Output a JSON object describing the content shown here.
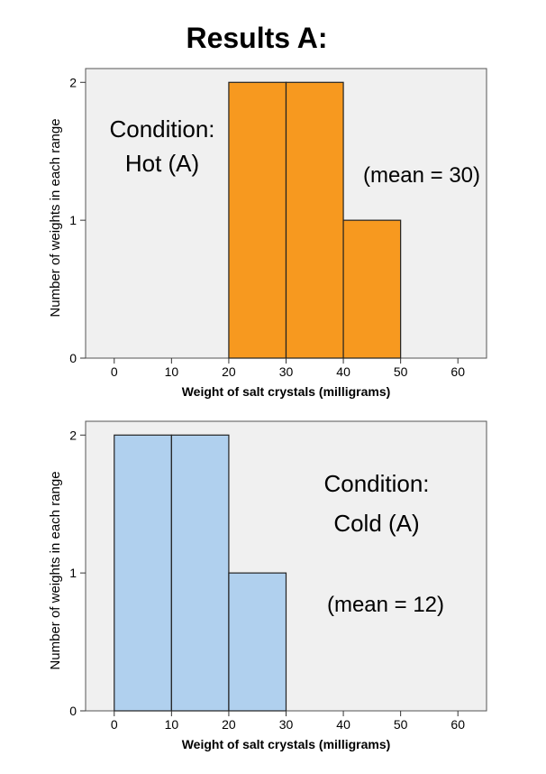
{
  "page": {
    "title": "Results  A:"
  },
  "chart_data": [
    {
      "type": "bar",
      "subtype": "histogram",
      "bin_edges": [
        20,
        30,
        40,
        50
      ],
      "values": [
        2,
        2,
        1
      ],
      "xlabel": "Weight of salt crystals (milligrams)",
      "ylabel": "Number of weights in each range",
      "xlim": [
        -5,
        65
      ],
      "ylim": [
        0,
        2.1
      ],
      "xticks": [
        0,
        10,
        20,
        30,
        40,
        50,
        60
      ],
      "yticks": [
        0,
        1,
        2
      ],
      "grid": false,
      "bar_color": "#f7991f",
      "plot_background": "#f0f0f0",
      "annotations": [
        "Condition:",
        "Hot (A)",
        "(mean = 30)"
      ]
    },
    {
      "type": "bar",
      "subtype": "histogram",
      "bin_edges": [
        0,
        10,
        20,
        30
      ],
      "values": [
        2,
        2,
        1
      ],
      "xlabel": "Weight of salt crystals (milligrams)",
      "ylabel": "Number of weights in each range",
      "xlim": [
        -5,
        65
      ],
      "ylim": [
        0,
        2.1
      ],
      "xticks": [
        0,
        10,
        20,
        30,
        40,
        50,
        60
      ],
      "yticks": [
        0,
        1,
        2
      ],
      "grid": false,
      "bar_color": "#b0d0ee",
      "plot_background": "#f0f0f0",
      "annotations": [
        "Condition:",
        "Cold (A)",
        "(mean = 12)"
      ]
    }
  ]
}
